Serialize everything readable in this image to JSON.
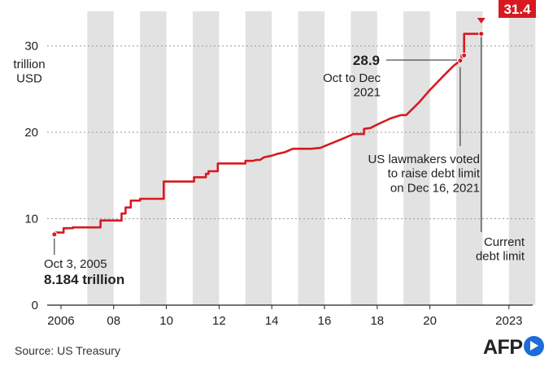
{
  "chart_data": {
    "type": "line",
    "ylabel": "trillion\nUSD",
    "ylim": [
      0,
      34
    ],
    "yticks": [
      0,
      10,
      20,
      30
    ],
    "xlim": [
      2005.6,
      2023.9
    ],
    "xtick_labels": [
      "2006",
      "08",
      "10",
      "12",
      "14",
      "16",
      "18",
      "20",
      "2023"
    ],
    "xtick_years": [
      2006,
      2008,
      2010,
      2012,
      2014,
      2016,
      2018,
      2020,
      2023
    ],
    "grid": "horizontal dotted",
    "background": "alternating vertical year bands",
    "series": [
      {
        "color": "#d71920",
        "x": [
          2005.75,
          2005.75,
          2006.1,
          2006.1,
          2006.45,
          2006.45,
          2007.5,
          2007.5,
          2008.3,
          2008.3,
          2008.45,
          2008.45,
          2008.65,
          2008.65,
          2009.0,
          2009.0,
          2009.9,
          2009.9,
          2010.0,
          2010.0,
          2011.05,
          2011.05,
          2011.5,
          2011.5,
          2011.6,
          2011.6,
          2011.95,
          2011.95,
          2013.0,
          2013.0,
          2013.3,
          2013.4,
          2013.55,
          2013.7,
          2014.0,
          2014.2,
          2014.5,
          2014.8,
          2015.5,
          2015.85,
          2016.0,
          2016.4,
          2016.8,
          2017.1,
          2017.5,
          2017.5,
          2017.75,
          2018.0,
          2018.5,
          2018.9,
          2019.1,
          2019.6,
          2020.0,
          2020.6,
          2020.9,
          2021.15,
          2021.2,
          2021.2,
          2021.3,
          2021.3,
          2021.95
        ],
        "y": [
          8.184,
          8.4,
          8.4,
          8.9,
          8.9,
          9.0,
          9.0,
          9.8,
          9.8,
          10.6,
          10.6,
          11.3,
          11.3,
          12.1,
          12.1,
          12.3,
          12.3,
          14.3,
          14.3,
          14.3,
          14.3,
          14.8,
          14.8,
          15.2,
          15.2,
          15.5,
          15.5,
          16.4,
          16.4,
          16.7,
          16.7,
          16.8,
          16.8,
          17.1,
          17.3,
          17.5,
          17.7,
          18.1,
          18.1,
          18.2,
          18.4,
          18.9,
          19.4,
          19.8,
          19.8,
          20.4,
          20.5,
          20.9,
          21.6,
          22.0,
          22.0,
          23.5,
          24.9,
          26.8,
          27.7,
          28.3,
          28.4,
          28.9,
          28.9,
          31.4,
          31.4
        ]
      }
    ],
    "points": [
      {
        "x": 2005.75,
        "y": 8.184
      },
      {
        "x": 2021.15,
        "y": 28.3
      },
      {
        "x": 2021.3,
        "y": 28.9
      },
      {
        "x": 2021.95,
        "y": 31.4
      }
    ],
    "annotations": {
      "start_date": "Oct 3, 2005",
      "start_value": "8.184 trillion",
      "peak_value": "28.9",
      "peak_period": "Oct to Dec\n2021",
      "vote_note": "US lawmakers voted\nto raise debt limit\non Dec 16, 2021",
      "limit_note": "Current\ndebt limit",
      "limit_value": "31.4"
    }
  },
  "source": "Source: US Treasury",
  "logo_text": "AFP"
}
